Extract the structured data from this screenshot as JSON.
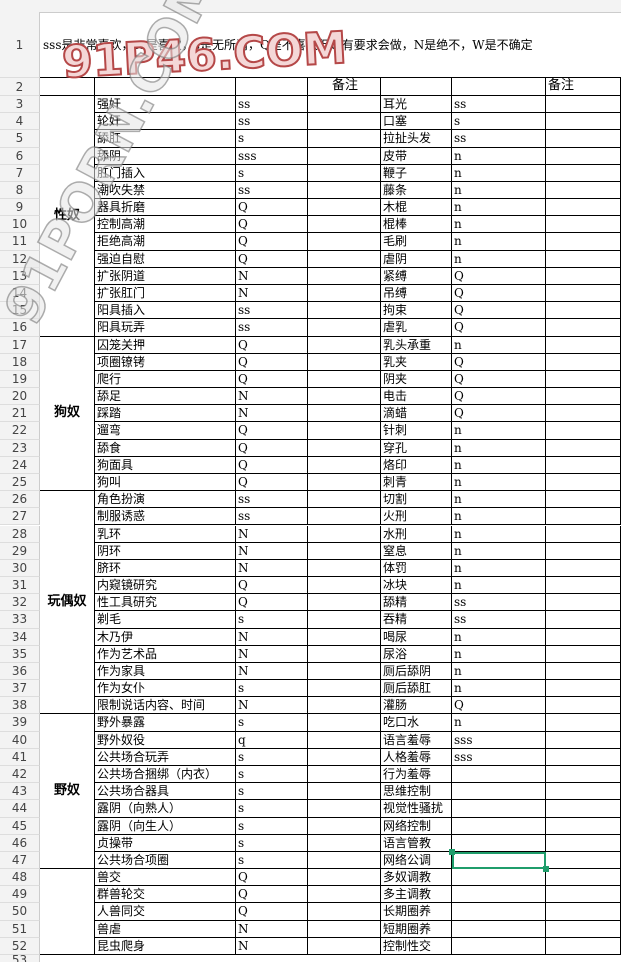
{
  "note": "sss是非常喜欢，ss是喜欢，s是无所谓，Q是不喜欢但是有要求会做，N是绝不，W是不确定",
  "header": {
    "remark_left": "备注",
    "remark_right": "备注"
  },
  "row_numbers": [
    1,
    2,
    3,
    4,
    5,
    6,
    7,
    8,
    9,
    10,
    11,
    12,
    13,
    14,
    15,
    16,
    17,
    18,
    19,
    20,
    21,
    22,
    23,
    24,
    25,
    26,
    27,
    28,
    29,
    30,
    31,
    32,
    33,
    34,
    35,
    36,
    37,
    38,
    39,
    40,
    41,
    42,
    43,
    44,
    45,
    46,
    47,
    48,
    49,
    50,
    51,
    52,
    53
  ],
  "groups": [
    {
      "label": "性奴",
      "rows": [
        [
          "强奸",
          "ss",
          "耳光",
          "ss"
        ],
        [
          "轮奸",
          "ss",
          "口塞",
          "s"
        ],
        [
          "舔肛",
          "s",
          "拉扯头发",
          "ss"
        ],
        [
          "舔阴",
          "sss",
          "皮带",
          "n"
        ],
        [
          "肛门插入",
          "s",
          "鞭子",
          "n"
        ],
        [
          "潮吹失禁",
          "ss",
          "藤条",
          "n"
        ],
        [
          "器具折磨",
          "Q",
          "木棍",
          "n"
        ],
        [
          "控制高潮",
          "Q",
          "棍棒",
          "n"
        ],
        [
          "拒绝高潮",
          "Q",
          "毛刷",
          "n"
        ],
        [
          "强迫自慰",
          "Q",
          "虐阴",
          "n"
        ],
        [
          "扩张阴道",
          "N",
          "紧缚",
          "Q"
        ],
        [
          "扩张肛门",
          "N",
          "吊缚",
          "Q"
        ],
        [
          "阳具插入",
          "ss",
          "拘束",
          "Q"
        ],
        [
          "阳具玩弄",
          "ss",
          "虐乳",
          "Q"
        ]
      ]
    },
    {
      "label": "狗奴",
      "rows": [
        [
          "囚笼关押",
          "Q",
          "乳头承重",
          "n"
        ],
        [
          "项圈镣铐",
          "Q",
          "乳夹",
          "Q"
        ],
        [
          "爬行",
          "Q",
          "阴夹",
          "Q"
        ],
        [
          "舔足",
          "N",
          "电击",
          "Q"
        ],
        [
          "踩踏",
          "N",
          "滴蜡",
          "Q"
        ],
        [
          "遛弯",
          "Q",
          "针刺",
          "n"
        ],
        [
          "舔食",
          "Q",
          "穿孔",
          "n"
        ],
        [
          "狗面具",
          "Q",
          "烙印",
          "n"
        ],
        [
          "狗叫",
          "Q",
          "刺青",
          "n"
        ]
      ]
    },
    {
      "label": "玩偶奴",
      "rows": [
        [
          "角色扮演",
          "ss",
          "切割",
          "n"
        ],
        [
          "制服诱惑",
          "ss",
          "火刑",
          "n"
        ],
        [
          "乳环",
          "N",
          "水刑",
          "n"
        ],
        [
          "阴环",
          "N",
          "窒息",
          "n"
        ],
        [
          "脐环",
          "N",
          "体罚",
          "n"
        ],
        [
          "内窥镜研究",
          "Q",
          "冰块",
          "n"
        ],
        [
          "性工具研究",
          "Q",
          "舔精",
          "ss"
        ],
        [
          "剃毛",
          "s",
          "吞精",
          "ss"
        ],
        [
          "木乃伊",
          "N",
          "喝尿",
          "n"
        ],
        [
          "作为艺术品",
          "N",
          "尿浴",
          "n"
        ],
        [
          "作为家具",
          "N",
          "厕后舔阴",
          "n"
        ],
        [
          "作为女仆",
          "s",
          "厕后舔肛",
          "n"
        ],
        [
          "限制说话内容、时间",
          "N",
          "灌肠",
          "Q"
        ]
      ]
    },
    {
      "label": "野奴",
      "rows": [
        [
          "野外暴露",
          "s",
          "吃口水",
          "n"
        ],
        [
          "野外奴役",
          "q",
          "语言羞辱",
          "sss"
        ],
        [
          "公共场合玩弄",
          "s",
          "人格羞辱",
          "sss"
        ],
        [
          "公共场合捆绑（内衣）",
          "s",
          "行为羞辱",
          null
        ],
        [
          "公共场合器具",
          "s",
          "思维控制",
          null
        ],
        [
          "露阴（向熟人）",
          "s",
          "视觉性骚扰",
          null
        ],
        [
          "露阴（向生人）",
          "s",
          "网络控制",
          null
        ],
        [
          "贞操带",
          "s",
          "语言管教",
          null
        ],
        [
          "公共场合项圈",
          "s",
          "网络公调",
          null
        ]
      ]
    }
  ],
  "other_rows": [
    [
      "兽交",
      "Q",
      "多奴调教",
      null
    ],
    [
      "群兽轮交",
      "Q",
      "多主调教",
      null
    ],
    [
      "人兽同交",
      "Q",
      "长期圈养",
      null
    ],
    [
      "兽虐",
      "N",
      "短期圈养",
      null
    ],
    [
      "昆虫爬身",
      "N",
      "控制性交",
      null
    ]
  ],
  "watermarks": [
    "91P46.COM",
    "91PORN.COM"
  ]
}
